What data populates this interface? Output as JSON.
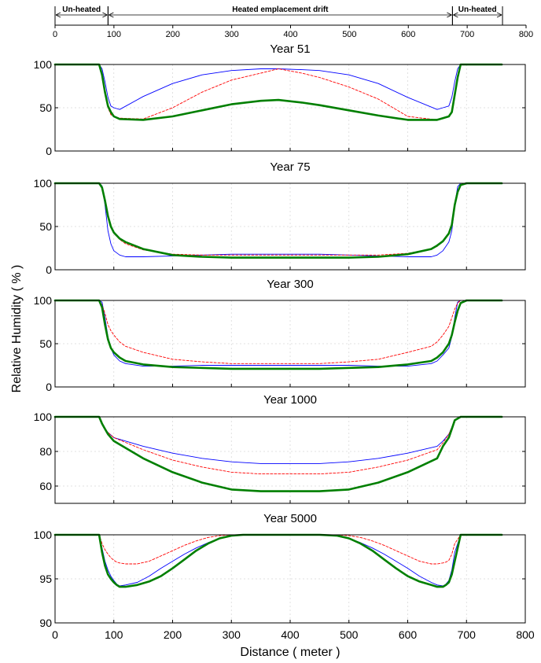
{
  "figure": {
    "ylabel": "Relative Humidity ( % )",
    "xlabel": "Distance ( meter )",
    "x_ticks": [
      "0",
      "100",
      "200",
      "300",
      "400",
      "500",
      "600",
      "700",
      "800"
    ]
  },
  "top_axis": {
    "ticks": [
      "0",
      "100",
      "200",
      "300",
      "400",
      "500",
      "600",
      "700",
      "800"
    ],
    "bands": [
      {
        "label": "Un-heated",
        "from": 0,
        "to": 90
      },
      {
        "label": "Heated emplacement drift",
        "from": 90,
        "to": 675
      },
      {
        "label": "Un-heated",
        "from": 675,
        "to": 760
      }
    ]
  },
  "colors": {
    "blue": "#0000ff",
    "red": "#ff0000",
    "green": "#007f00"
  },
  "chart_data": [
    {
      "type": "line",
      "title": "Year 51",
      "xlim": [
        0,
        800
      ],
      "ylim": [
        0,
        100
      ],
      "yticks": [
        "100",
        "50",
        "0"
      ],
      "grid": true,
      "series": [
        {
          "color": "blue",
          "style": "solid",
          "width": 0.9,
          "x": [
            0,
            70,
            75,
            80,
            85,
            90,
            95,
            100,
            110,
            150,
            200,
            250,
            300,
            350,
            380,
            420,
            450,
            500,
            550,
            600,
            650,
            660,
            670,
            675,
            680,
            685,
            690,
            700,
            760
          ],
          "y": [
            100,
            100,
            100,
            95,
            80,
            62,
            52,
            50,
            48,
            63,
            78,
            88,
            93,
            95,
            95,
            94,
            93,
            88,
            78,
            62,
            48,
            50,
            52,
            62,
            80,
            95,
            100,
            100,
            100
          ]
        },
        {
          "color": "red",
          "style": "dashed",
          "width": 0.9,
          "x": [
            0,
            70,
            75,
            80,
            85,
            90,
            95,
            100,
            110,
            150,
            200,
            250,
            300,
            350,
            380,
            420,
            450,
            500,
            550,
            600,
            650,
            660,
            670,
            675,
            680,
            685,
            690,
            700,
            760
          ],
          "y": [
            100,
            100,
            100,
            90,
            70,
            50,
            42,
            40,
            38,
            37,
            50,
            68,
            82,
            90,
            95,
            90,
            85,
            74,
            60,
            40,
            36,
            38,
            40,
            45,
            65,
            88,
            100,
            100,
            100
          ]
        },
        {
          "color": "green",
          "style": "solid",
          "width": 2.6,
          "x": [
            0,
            70,
            75,
            80,
            85,
            90,
            95,
            100,
            110,
            150,
            200,
            250,
            300,
            350,
            380,
            420,
            450,
            500,
            550,
            600,
            650,
            660,
            670,
            675,
            680,
            685,
            690,
            700,
            760
          ],
          "y": [
            100,
            100,
            100,
            88,
            68,
            52,
            45,
            40,
            37,
            36,
            40,
            47,
            54,
            58,
            59,
            56,
            53,
            47,
            41,
            36,
            36,
            38,
            40,
            45,
            65,
            85,
            100,
            100,
            100
          ]
        }
      ]
    },
    {
      "type": "line",
      "title": "Year 75",
      "xlim": [
        0,
        800
      ],
      "ylim": [
        0,
        100
      ],
      "yticks": [
        "100",
        "50",
        "0"
      ],
      "grid": true,
      "series": [
        {
          "color": "blue",
          "style": "solid",
          "width": 0.9,
          "x": [
            0,
            70,
            75,
            80,
            85,
            90,
            95,
            100,
            110,
            120,
            150,
            200,
            250,
            300,
            350,
            400,
            450,
            500,
            550,
            600,
            640,
            650,
            660,
            670,
            675,
            680,
            685,
            690,
            700,
            760
          ],
          "y": [
            100,
            100,
            100,
            97,
            75,
            45,
            30,
            22,
            17,
            15,
            15,
            16,
            17,
            18,
            18,
            18,
            18,
            17,
            16,
            15,
            15,
            17,
            22,
            32,
            45,
            75,
            96,
            100,
            100,
            100
          ]
        },
        {
          "color": "red",
          "style": "dashed",
          "width": 0.9,
          "x": [
            0,
            70,
            75,
            80,
            85,
            90,
            95,
            100,
            110,
            120,
            150,
            200,
            250,
            300,
            350,
            400,
            450,
            500,
            550,
            600,
            640,
            650,
            660,
            670,
            675,
            680,
            685,
            690,
            700,
            760
          ],
          "y": [
            100,
            100,
            100,
            95,
            80,
            62,
            50,
            42,
            35,
            30,
            23,
            18,
            17,
            17,
            17,
            17,
            17,
            17,
            17,
            19,
            24,
            27,
            33,
            42,
            52,
            75,
            90,
            98,
            100,
            100
          ]
        },
        {
          "color": "green",
          "style": "solid",
          "width": 2.6,
          "x": [
            0,
            70,
            75,
            80,
            85,
            90,
            95,
            100,
            110,
            120,
            150,
            200,
            250,
            300,
            350,
            400,
            450,
            500,
            550,
            600,
            640,
            650,
            660,
            670,
            675,
            680,
            685,
            690,
            700,
            760
          ],
          "y": [
            100,
            100,
            100,
            95,
            80,
            62,
            50,
            43,
            36,
            32,
            24,
            17,
            15,
            14,
            14,
            14,
            14,
            14,
            15,
            18,
            24,
            28,
            33,
            42,
            52,
            75,
            90,
            98,
            100,
            100
          ]
        }
      ]
    },
    {
      "type": "line",
      "title": "Year 300",
      "xlim": [
        0,
        800
      ],
      "ylim": [
        0,
        100
      ],
      "yticks": [
        "100",
        "50",
        "0"
      ],
      "grid": true,
      "series": [
        {
          "color": "blue",
          "style": "solid",
          "width": 0.9,
          "x": [
            0,
            70,
            75,
            80,
            85,
            90,
            95,
            100,
            110,
            120,
            150,
            200,
            250,
            300,
            350,
            400,
            450,
            500,
            550,
            600,
            640,
            650,
            660,
            670,
            675,
            680,
            685,
            690,
            700,
            760
          ],
          "y": [
            100,
            100,
            100,
            98,
            80,
            58,
            45,
            37,
            30,
            27,
            24,
            24,
            25,
            25,
            25,
            25,
            25,
            25,
            24,
            24,
            27,
            30,
            37,
            45,
            58,
            80,
            98,
            100,
            100,
            100
          ]
        },
        {
          "color": "red",
          "style": "dashed",
          "width": 0.9,
          "x": [
            0,
            70,
            75,
            80,
            85,
            90,
            95,
            100,
            110,
            120,
            150,
            200,
            250,
            300,
            350,
            400,
            450,
            500,
            550,
            600,
            640,
            650,
            660,
            670,
            675,
            680,
            685,
            690,
            700,
            760
          ],
          "y": [
            100,
            100,
            100,
            95,
            85,
            72,
            65,
            60,
            52,
            47,
            40,
            32,
            29,
            27,
            27,
            27,
            27,
            29,
            32,
            40,
            47,
            52,
            60,
            70,
            80,
            90,
            97,
            100,
            100,
            100
          ]
        },
        {
          "color": "green",
          "style": "solid",
          "width": 2.6,
          "x": [
            0,
            70,
            75,
            80,
            85,
            90,
            95,
            100,
            110,
            120,
            150,
            200,
            250,
            300,
            350,
            400,
            450,
            500,
            550,
            600,
            640,
            650,
            660,
            670,
            675,
            680,
            685,
            690,
            700,
            760
          ],
          "y": [
            100,
            100,
            100,
            92,
            72,
            55,
            45,
            40,
            34,
            30,
            26,
            23,
            22,
            21,
            21,
            21,
            21,
            22,
            23,
            26,
            30,
            34,
            40,
            50,
            60,
            75,
            88,
            97,
            100,
            100
          ]
        }
      ]
    },
    {
      "type": "line",
      "title": "Year 1000",
      "xlim": [
        0,
        800
      ],
      "ylim": [
        50,
        100
      ],
      "yticks": [
        "100",
        "80",
        "60"
      ],
      "grid": true,
      "series": [
        {
          "color": "blue",
          "style": "solid",
          "width": 0.9,
          "x": [
            0,
            75,
            80,
            85,
            90,
            100,
            150,
            200,
            250,
            300,
            350,
            400,
            450,
            500,
            550,
            600,
            650,
            660,
            670,
            675,
            680,
            690,
            760
          ],
          "y": [
            100,
            100,
            96,
            93,
            91,
            88,
            83,
            79,
            76,
            74,
            73,
            73,
            73,
            74,
            76,
            79,
            83,
            86,
            90,
            94,
            98,
            100,
            100
          ]
        },
        {
          "color": "red",
          "style": "dashed",
          "width": 0.9,
          "x": [
            0,
            75,
            80,
            85,
            90,
            100,
            150,
            200,
            250,
            300,
            350,
            400,
            450,
            500,
            550,
            600,
            650,
            660,
            670,
            675,
            680,
            690,
            760
          ],
          "y": [
            100,
            100,
            96,
            93,
            91,
            88,
            81,
            75,
            71,
            68,
            67,
            67,
            67,
            68,
            71,
            75,
            81,
            85,
            90,
            94,
            98,
            100,
            100
          ]
        },
        {
          "color": "green",
          "style": "solid",
          "width": 2.6,
          "x": [
            0,
            75,
            80,
            85,
            90,
            100,
            150,
            200,
            250,
            300,
            350,
            400,
            450,
            500,
            550,
            600,
            650,
            660,
            670,
            675,
            680,
            690,
            760
          ],
          "y": [
            100,
            100,
            96,
            93,
            90,
            86,
            76,
            68,
            62,
            58,
            57,
            57,
            57,
            58,
            62,
            68,
            76,
            83,
            88,
            93,
            98,
            100,
            100
          ]
        }
      ]
    },
    {
      "type": "line",
      "title": "Year 5000",
      "xlim": [
        0,
        800
      ],
      "ylim": [
        90,
        100
      ],
      "yticks": [
        "100",
        "95",
        "90"
      ],
      "grid": true,
      "series": [
        {
          "color": "blue",
          "style": "solid",
          "width": 0.9,
          "x": [
            0,
            75,
            80,
            85,
            90,
            95,
            100,
            105,
            110,
            120,
            140,
            160,
            180,
            200,
            220,
            240,
            260,
            280,
            300,
            320,
            350,
            400,
            450,
            480,
            500,
            520,
            540,
            560,
            580,
            600,
            620,
            640,
            650,
            660,
            665,
            670,
            675,
            680,
            690,
            760
          ],
          "y": [
            100,
            100,
            98.5,
            97,
            96,
            95.3,
            94.8,
            94.4,
            94.2,
            94.3,
            94.6,
            95.3,
            96.2,
            97,
            97.8,
            98.5,
            99.1,
            99.6,
            99.9,
            100,
            100,
            100,
            100,
            99.9,
            99.6,
            99.1,
            98.5,
            97.8,
            97,
            96.2,
            95.3,
            94.6,
            94.3,
            94.2,
            94.4,
            94.8,
            96,
            98,
            100,
            100
          ]
        },
        {
          "color": "red",
          "style": "dashed",
          "width": 0.9,
          "x": [
            0,
            75,
            80,
            85,
            90,
            95,
            100,
            105,
            110,
            120,
            140,
            160,
            180,
            200,
            220,
            240,
            260,
            280,
            300,
            320,
            350,
            400,
            450,
            480,
            500,
            520,
            540,
            560,
            580,
            600,
            620,
            640,
            650,
            660,
            665,
            670,
            675,
            680,
            690,
            760
          ],
          "y": [
            100,
            100,
            99,
            98.3,
            97.8,
            97.4,
            97.1,
            96.9,
            96.8,
            96.7,
            96.7,
            97,
            97.6,
            98.2,
            98.8,
            99.3,
            99.7,
            99.9,
            100,
            100,
            100,
            100,
            100,
            100,
            99.9,
            99.7,
            99.3,
            98.8,
            98.2,
            97.6,
            97,
            96.7,
            96.7,
            96.8,
            96.9,
            97.1,
            97.8,
            99,
            100,
            100
          ]
        },
        {
          "color": "green",
          "style": "solid",
          "width": 2.6,
          "x": [
            0,
            75,
            80,
            85,
            90,
            95,
            100,
            105,
            110,
            120,
            140,
            160,
            180,
            200,
            220,
            240,
            260,
            280,
            300,
            320,
            350,
            400,
            450,
            480,
            500,
            520,
            540,
            560,
            580,
            600,
            620,
            640,
            650,
            660,
            665,
            670,
            675,
            680,
            690,
            760
          ],
          "y": [
            100,
            100,
            98,
            96.5,
            95.5,
            95,
            94.6,
            94.3,
            94.1,
            94.1,
            94.3,
            94.7,
            95.3,
            96.2,
            97.2,
            98.2,
            99,
            99.6,
            99.9,
            100,
            100,
            100,
            100,
            99.9,
            99.6,
            99,
            98.2,
            97.2,
            96.2,
            95.3,
            94.7,
            94.3,
            94.1,
            94.1,
            94.3,
            94.6,
            95.5,
            97,
            100,
            100
          ]
        }
      ]
    }
  ]
}
